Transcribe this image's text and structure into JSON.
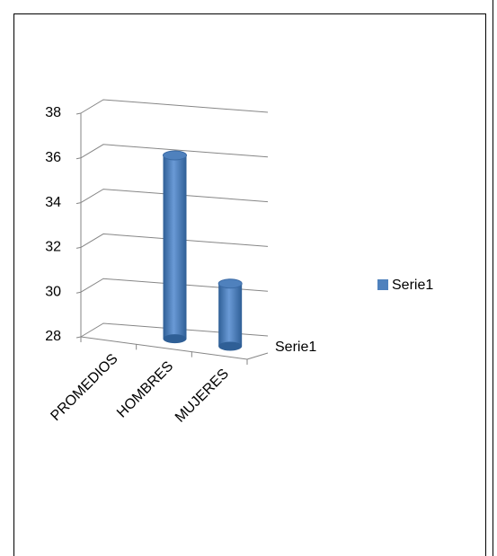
{
  "chart_data": {
    "type": "bar",
    "categories": [
      "PROMEDIOS",
      "HOMBRES",
      "MUJERES"
    ],
    "series": [
      {
        "name": "Serie1",
        "color": "#4f81bd",
        "values": [
          null,
          36.2,
          30.8
        ]
      }
    ],
    "ylim": [
      28,
      38
    ],
    "yticks": [
      28,
      30,
      32,
      34,
      36,
      38
    ],
    "grid": true,
    "legend": "right"
  }
}
